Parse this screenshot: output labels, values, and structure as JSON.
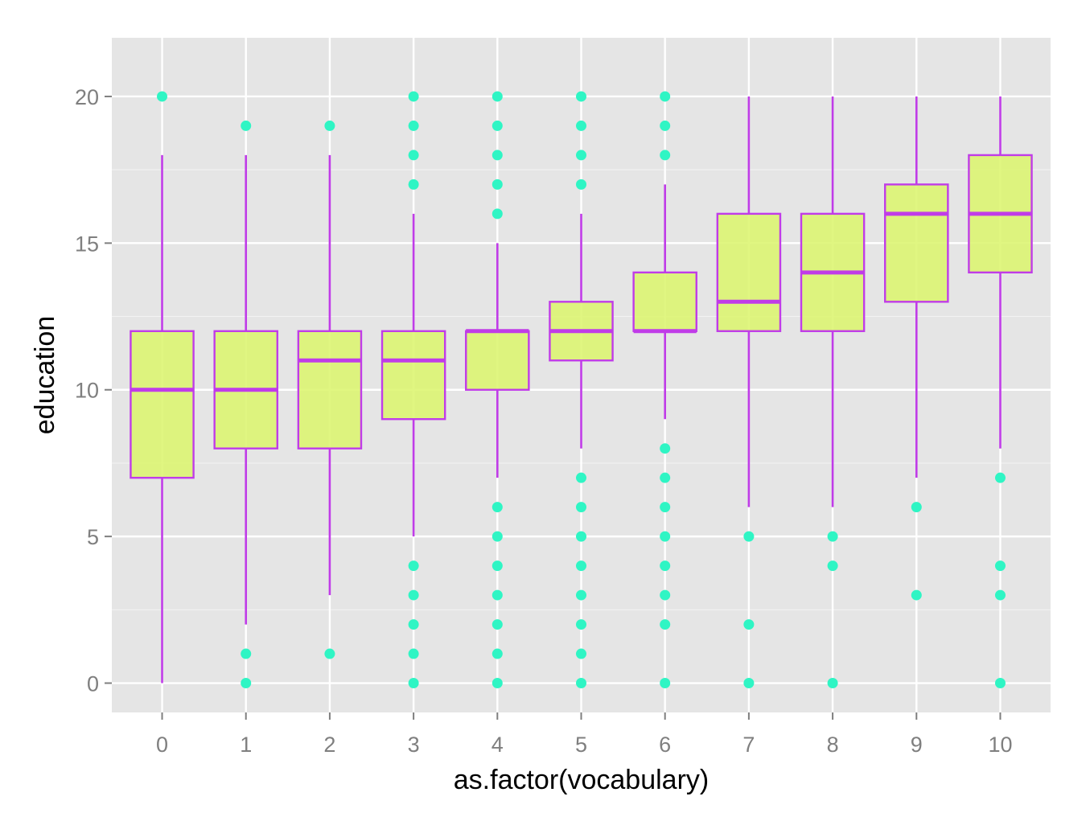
{
  "chart_data": {
    "type": "boxplot",
    "title": "",
    "xlabel": "as.factor(vocabulary)",
    "ylabel": "education",
    "ylim": [
      -1,
      22
    ],
    "yticks": [
      0,
      5,
      10,
      15,
      20
    ],
    "grid": true,
    "colors": {
      "panel_background": "#e5e5e5",
      "grid_major": "#ffffff",
      "grid_minor": "#f2f2f2",
      "box_fill": "#dcf570",
      "box_stroke": "#c03ce8",
      "outlier": "#2ff5c4",
      "tick_label": "#7f7f7f",
      "axis_title": "#000000"
    },
    "categories": [
      "0",
      "1",
      "2",
      "3",
      "4",
      "5",
      "6",
      "7",
      "8",
      "9",
      "10"
    ],
    "boxes": [
      {
        "category": "0",
        "lower_whisker": 0,
        "q1": 7,
        "median": 10,
        "q3": 12,
        "upper_whisker": 18,
        "outliers": [
          20
        ]
      },
      {
        "category": "1",
        "lower_whisker": 2,
        "q1": 8,
        "median": 10,
        "q3": 12,
        "upper_whisker": 18,
        "outliers": [
          0,
          1,
          19
        ]
      },
      {
        "category": "2",
        "lower_whisker": 3,
        "q1": 8,
        "median": 11,
        "q3": 12,
        "upper_whisker": 18,
        "outliers": [
          1,
          19
        ]
      },
      {
        "category": "3",
        "lower_whisker": 5,
        "q1": 9,
        "median": 11,
        "q3": 12,
        "upper_whisker": 16,
        "outliers": [
          0,
          1,
          2,
          3,
          4,
          17,
          18,
          19,
          20
        ]
      },
      {
        "category": "4",
        "lower_whisker": 7,
        "q1": 10,
        "median": 12,
        "q3": 12,
        "upper_whisker": 15,
        "outliers": [
          0,
          1,
          2,
          3,
          4,
          5,
          6,
          16,
          17,
          18,
          19,
          20
        ]
      },
      {
        "category": "5",
        "lower_whisker": 8,
        "q1": 11,
        "median": 12,
        "q3": 13,
        "upper_whisker": 16,
        "outliers": [
          0,
          1,
          2,
          3,
          4,
          5,
          6,
          7,
          17,
          18,
          19,
          20
        ]
      },
      {
        "category": "6",
        "lower_whisker": 9,
        "q1": 12,
        "median": 12,
        "q3": 14,
        "upper_whisker": 17,
        "outliers": [
          0,
          2,
          3,
          4,
          5,
          6,
          7,
          8,
          18,
          19,
          20
        ]
      },
      {
        "category": "7",
        "lower_whisker": 6,
        "q1": 12,
        "median": 13,
        "q3": 16,
        "upper_whisker": 20,
        "outliers": [
          0,
          2,
          5
        ]
      },
      {
        "category": "8",
        "lower_whisker": 6,
        "q1": 12,
        "median": 14,
        "q3": 16,
        "upper_whisker": 20,
        "outliers": [
          0,
          4,
          5
        ]
      },
      {
        "category": "9",
        "lower_whisker": 7,
        "q1": 13,
        "median": 16,
        "q3": 17,
        "upper_whisker": 20,
        "outliers": [
          3,
          6
        ]
      },
      {
        "category": "10",
        "lower_whisker": 8,
        "q1": 14,
        "median": 16,
        "q3": 18,
        "upper_whisker": 20,
        "outliers": [
          0,
          3,
          4,
          7
        ]
      }
    ]
  }
}
